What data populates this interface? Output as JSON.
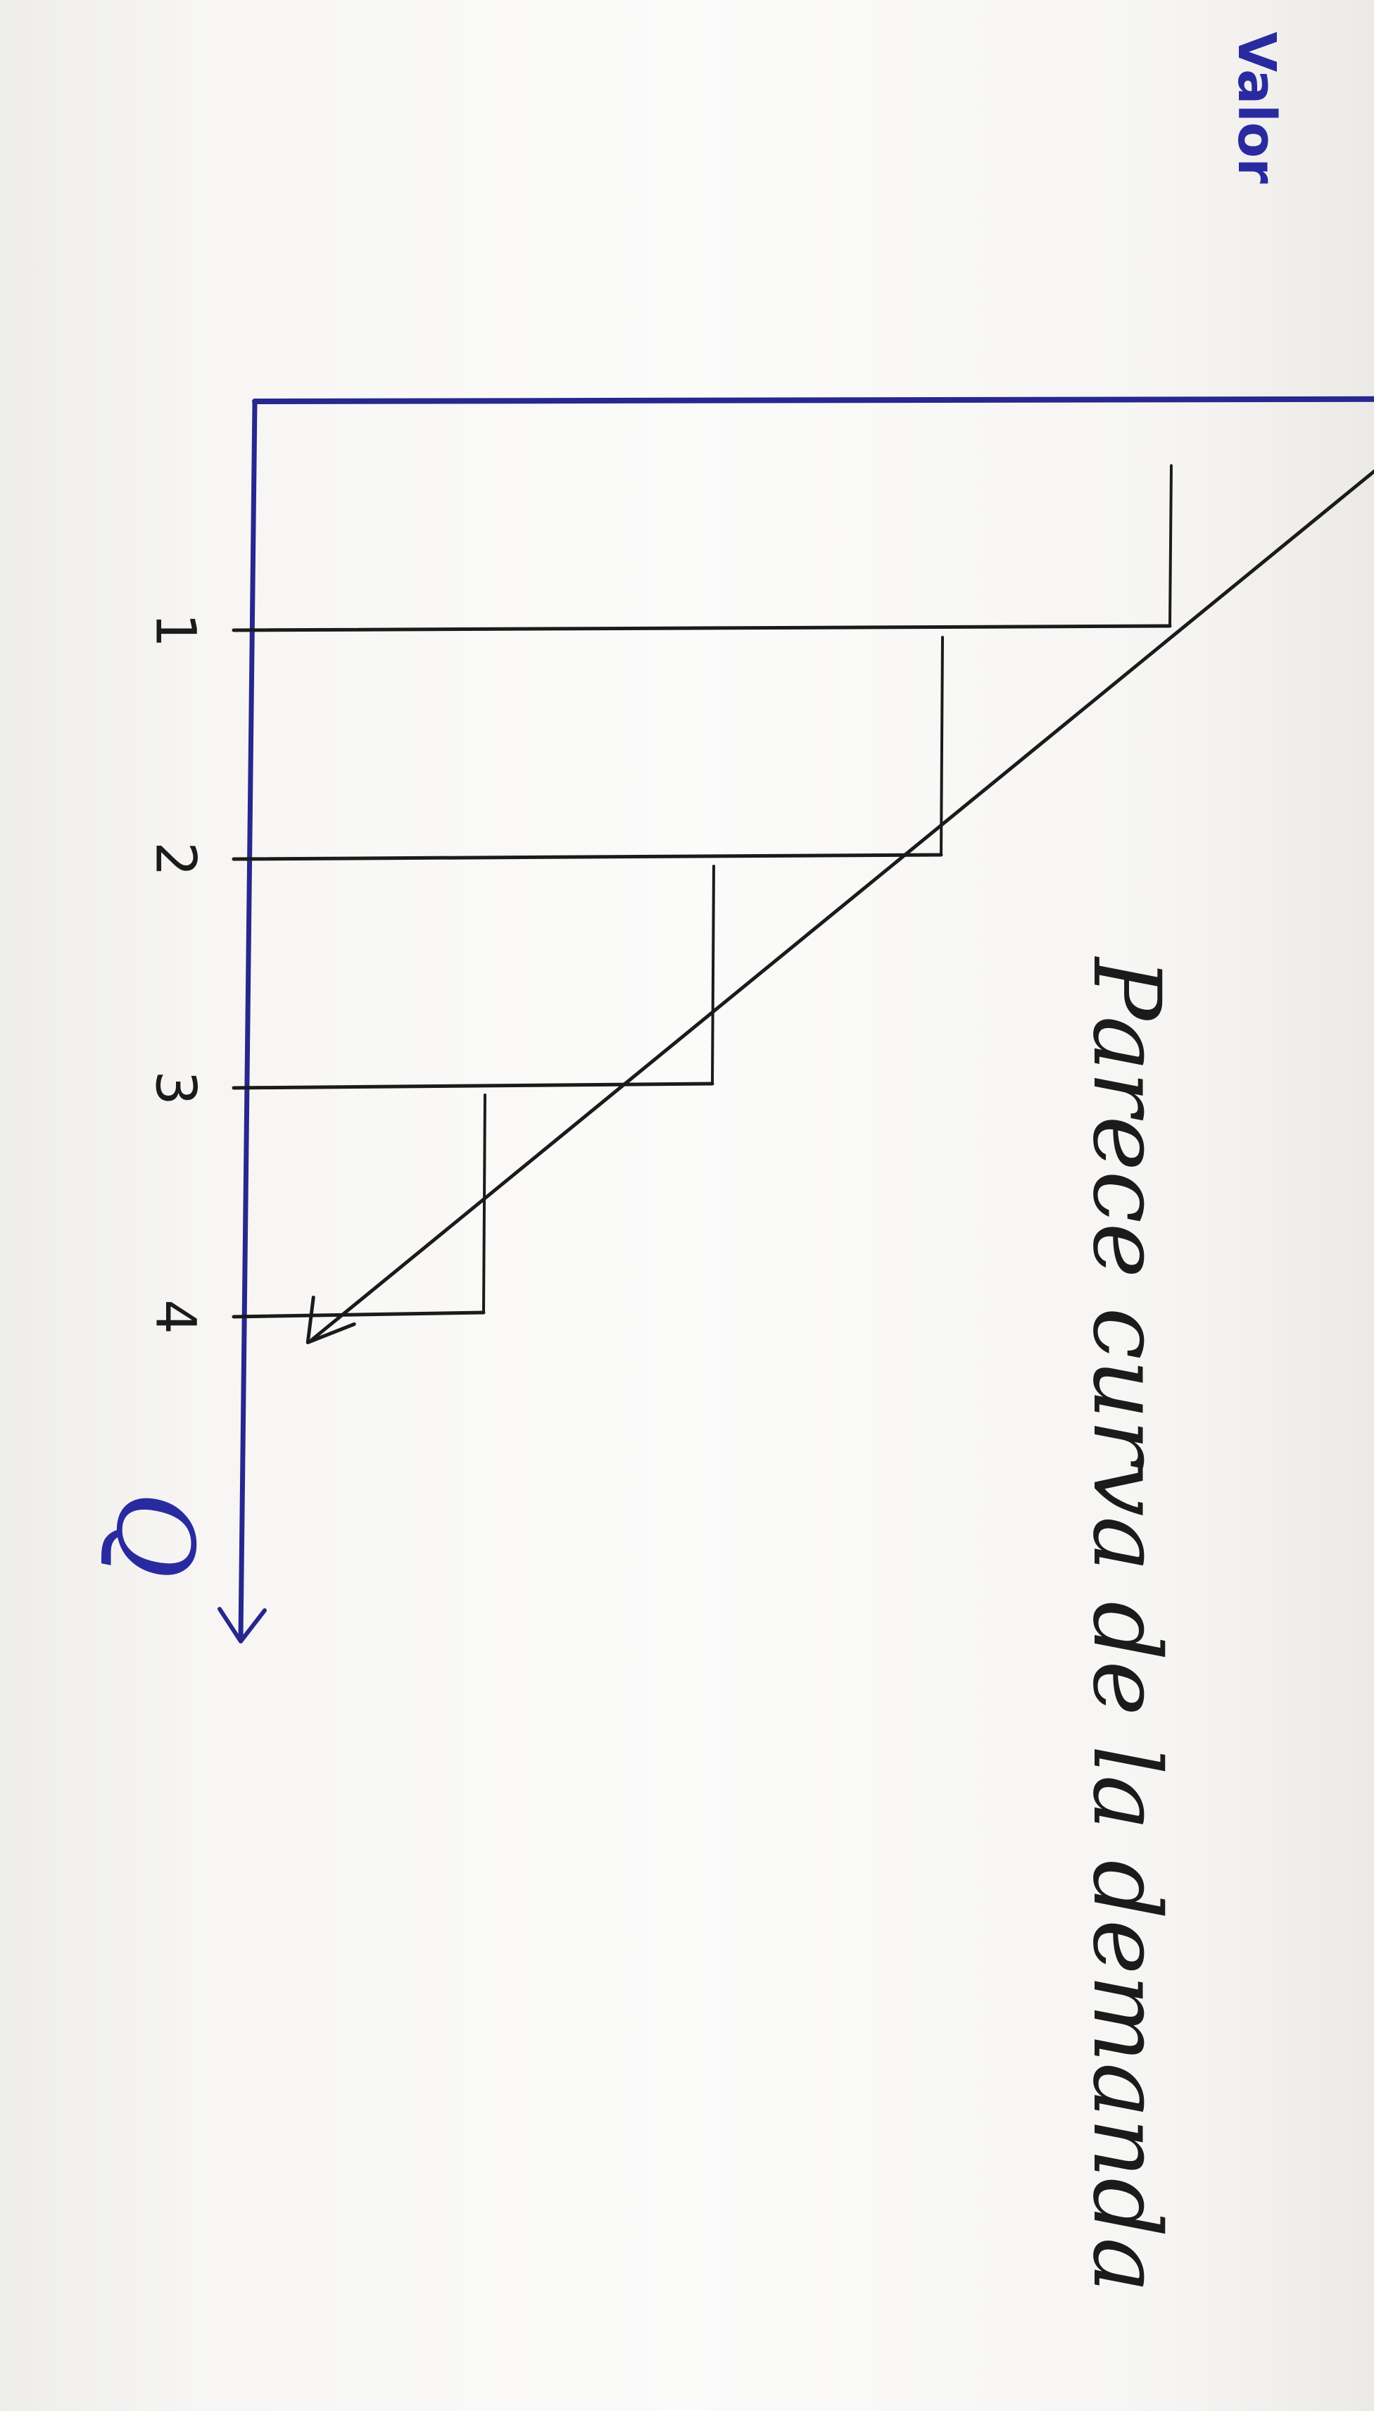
{
  "chart_data": {
    "type": "line",
    "title": "Parece curva de la demanda",
    "xlabel": "Q",
    "ylabel": "Valor",
    "categories": [
      "1",
      "2",
      "3",
      "4"
    ],
    "steps": [
      {
        "q": 1,
        "valor": 4
      },
      {
        "q": 2,
        "valor": 3
      },
      {
        "q": 3,
        "valor": 2
      },
      {
        "q": 4,
        "valor": 1
      }
    ],
    "curve": {
      "from": {
        "q": 0.3,
        "valor": 4.9
      },
      "to": {
        "q": 4.1,
        "valor": 0.25
      }
    },
    "xlim": [
      0,
      5.4
    ],
    "ylim": [
      0,
      6.1
    ],
    "grid": false,
    "colors": {
      "axes": "#27278f",
      "lines": "#1b1b1b",
      "labels": "#1b1b1b",
      "axis_labels": "#2a2aa0"
    }
  }
}
